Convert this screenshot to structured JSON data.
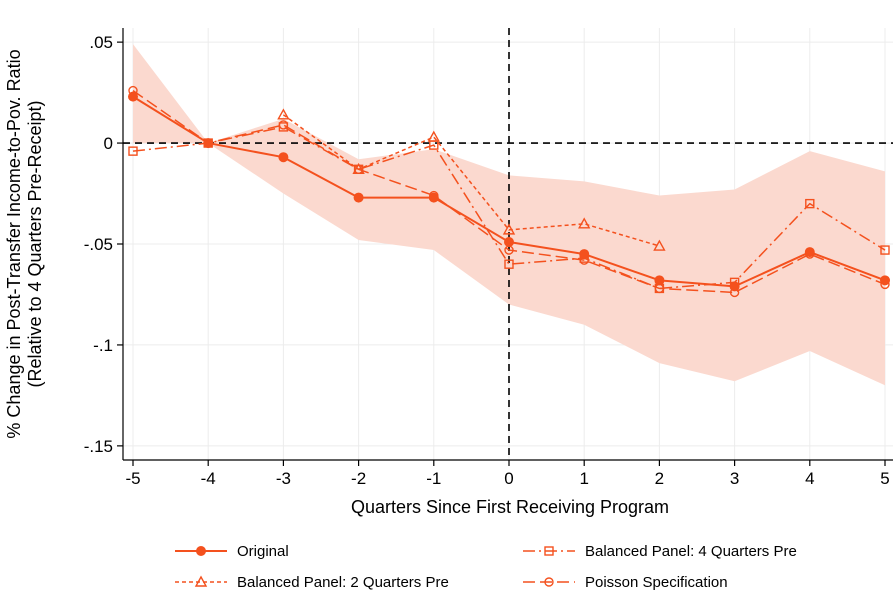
{
  "chart_data": {
    "type": "line",
    "xlabel": "Quarters Since First Receiving Program",
    "ylabel_line1": "% Change in Post-Transfer Income-to-Pov. Ratio",
    "ylabel_line2": "(Relative to 4 Quarters Pre-Receipt)",
    "x": [
      -5,
      -4,
      -3,
      -2,
      -1,
      0,
      1,
      2,
      3,
      4,
      5
    ],
    "x_tick_labels": [
      "-5",
      "-4",
      "-3",
      "-2",
      "-1",
      "0",
      "1",
      "2",
      "3",
      "4",
      "5"
    ],
    "y_ticks": [
      0.05,
      0,
      -0.05,
      -0.1,
      -0.15
    ],
    "y_tick_labels": [
      ".05",
      "0",
      "-.05",
      "-.1",
      "-.15"
    ],
    "xlim": [
      -5.1,
      5.1
    ],
    "ylim": [
      -0.157,
      0.057
    ],
    "grid": true,
    "reference_lines": {
      "x": 0,
      "y": 0
    },
    "confidence_band": {
      "x": [
        -5,
        -4,
        -3,
        -2,
        -1,
        0,
        1,
        2,
        3,
        4,
        5
      ],
      "lower": [
        0.0,
        0.0,
        -0.025,
        -0.048,
        -0.053,
        -0.08,
        -0.09,
        -0.109,
        -0.118,
        -0.103,
        -0.12
      ],
      "upper": [
        0.049,
        0.0,
        0.012,
        -0.008,
        -0.003,
        -0.016,
        -0.019,
        -0.026,
        -0.023,
        -0.004,
        -0.014
      ],
      "color": "#fbd9cf"
    },
    "series": [
      {
        "name": "Original",
        "x": [
          -5,
          -4,
          -3,
          -2,
          -1,
          0,
          1,
          2,
          3,
          4,
          5
        ],
        "values": [
          0.023,
          0.0,
          -0.007,
          -0.027,
          -0.027,
          -0.049,
          -0.055,
          -0.068,
          -0.071,
          -0.054,
          -0.068
        ],
        "marker": "filled-circle",
        "dash": "solid"
      },
      {
        "name": "Balanced Panel: 2 Quarters Pre",
        "x": [
          -3,
          -2,
          -1,
          0,
          1,
          2
        ],
        "values": [
          0.014,
          -0.013,
          0.003,
          -0.043,
          -0.04,
          -0.051
        ],
        "marker": "hollow-triangle",
        "dash": "short-dash"
      },
      {
        "name": "Balanced Panel: 4 Quarters Pre",
        "x": [
          -5,
          -4,
          -3,
          -2,
          -1,
          0,
          1,
          2,
          3,
          4,
          5
        ],
        "values": [
          -0.004,
          0.0,
          0.008,
          -0.013,
          -0.001,
          -0.06,
          -0.057,
          -0.072,
          -0.069,
          -0.03,
          -0.053
        ],
        "marker": "hollow-square",
        "dash": "long-dash-dot"
      },
      {
        "name": "Poisson Specification",
        "x": [
          -5,
          -4,
          -3,
          -2,
          -1,
          0,
          1,
          2,
          3,
          4,
          5
        ],
        "values": [
          0.026,
          0.0,
          0.009,
          -0.013,
          -0.026,
          -0.053,
          -0.058,
          -0.072,
          -0.074,
          -0.055,
          -0.07
        ],
        "marker": "hollow-circle",
        "dash": "long-dash"
      }
    ],
    "line_color": "#f4511e",
    "legend_position": "bottom"
  }
}
